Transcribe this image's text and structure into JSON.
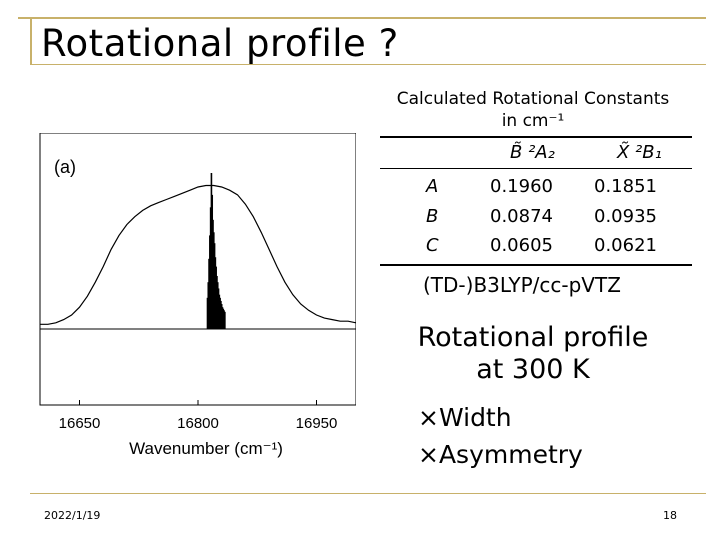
{
  "slide": {
    "title": "Rotational profile ?",
    "date": "2022/1/19",
    "page_number": "18"
  },
  "constants_table": {
    "caption_line1": "Calculated Rotational Constants",
    "caption_line2": "in cm⁻¹",
    "col_state1": "B̃ ²A₂",
    "col_state2": "X̃ ²B₁",
    "rows": [
      {
        "label": "A",
        "v1": "0.1960",
        "v2": "0.1851"
      },
      {
        "label": "B",
        "v1": "0.0874",
        "v2": "0.0935"
      },
      {
        "label": "C",
        "v1": "0.0605",
        "v2": "0.0621"
      }
    ],
    "method": "(TD-)B3LYP/cc-pVTZ"
  },
  "notes": {
    "line1": "Rotational profile",
    "line2": "at 300 K",
    "bullet1": "×Width",
    "bullet2": "×Asymmetry"
  },
  "chart_data": {
    "type": "line",
    "panel_label": "(a)",
    "xlabel": "Wavenumber (cm⁻¹)",
    "xticks": [
      16650,
      16800,
      16950
    ],
    "xlim": [
      16600,
      17000
    ],
    "series": [
      {
        "color": "#000000",
        "x": [
          16600,
          16610,
          16620,
          16630,
          16640,
          16650,
          16660,
          16670,
          16680,
          16690,
          16700,
          16710,
          16720,
          16730,
          16740,
          16750,
          16760,
          16770,
          16780,
          16790,
          16800,
          16810,
          16820,
          16830,
          16840,
          16850,
          16860,
          16870,
          16880,
          16890,
          16900,
          16910,
          16920,
          16930,
          16940,
          16950,
          16960,
          16970,
          16980,
          16990,
          17000
        ],
        "y": [
          0.03,
          0.03,
          0.04,
          0.06,
          0.09,
          0.14,
          0.21,
          0.3,
          0.4,
          0.51,
          0.6,
          0.67,
          0.72,
          0.76,
          0.79,
          0.81,
          0.83,
          0.85,
          0.87,
          0.89,
          0.91,
          0.92,
          0.92,
          0.91,
          0.89,
          0.86,
          0.8,
          0.72,
          0.62,
          0.51,
          0.4,
          0.3,
          0.22,
          0.16,
          0.12,
          0.09,
          0.07,
          0.06,
          0.05,
          0.05,
          0.04
        ]
      },
      {
        "type": "stick",
        "color": "#000000",
        "x": [
          16812,
          16813,
          16814,
          16815,
          16816,
          16817,
          16818,
          16819,
          16820,
          16821,
          16822,
          16823,
          16824,
          16825,
          16826,
          16827,
          16828,
          16829,
          16830,
          16831,
          16832,
          16833,
          16834
        ],
        "y": [
          0.2,
          0.3,
          0.45,
          0.6,
          0.78,
          1.0,
          0.86,
          0.7,
          0.62,
          0.55,
          0.46,
          0.4,
          0.34,
          0.3,
          0.26,
          0.22,
          0.2,
          0.18,
          0.16,
          0.14,
          0.13,
          0.12,
          0.11
        ]
      }
    ]
  }
}
